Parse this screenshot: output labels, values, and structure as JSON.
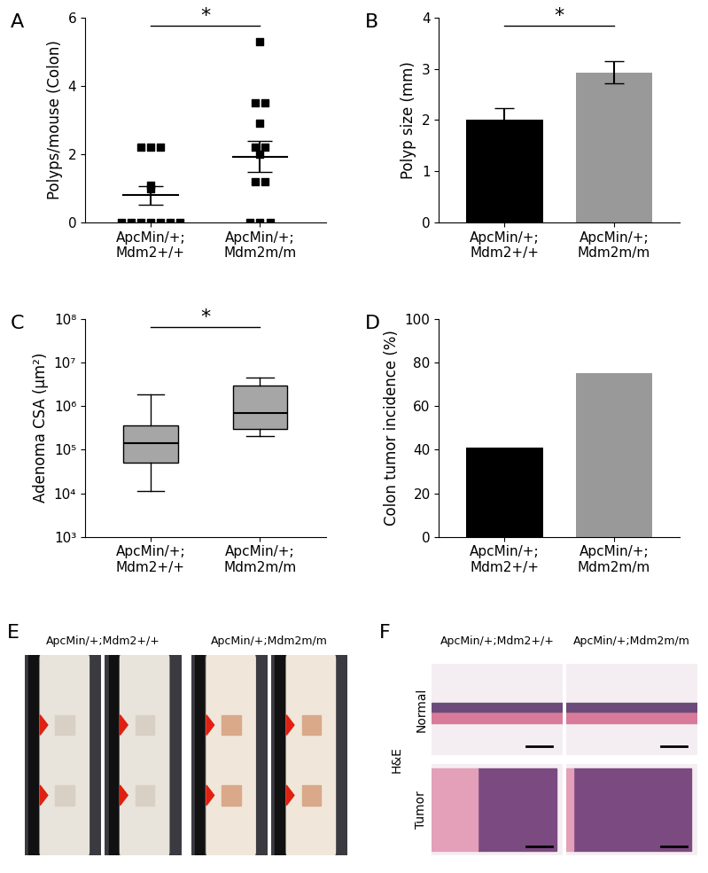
{
  "chart_data": [
    {
      "panel": "A",
      "type": "dot_plot",
      "categories": [
        "ApcMin/+;\nMdm2+/+",
        "ApcMin/+;\nMdm2m/m"
      ],
      "ylabel": "Polyps/mouse (Colon)",
      "values": [
        [
          2.2,
          2.2,
          2.2,
          1.1,
          1.0,
          0,
          0,
          0,
          0,
          0,
          0,
          0
        ],
        [
          5.3,
          3.5,
          3.5,
          2.9,
          2.2,
          2.2,
          2.0,
          1.2,
          1.2,
          0,
          0,
          0
        ]
      ],
      "means": [
        0.8,
        1.93
      ],
      "errors": [
        0.28,
        0.45
      ],
      "ylim": [
        0,
        6
      ],
      "yticks": [
        0,
        2,
        4,
        6
      ],
      "annotations": [
        "*"
      ],
      "marker": "square",
      "color": "#000000"
    },
    {
      "panel": "B",
      "type": "bar",
      "categories": [
        "ApcMin/+;\nMdm2+/+",
        "ApcMin/+;\nMdm2m/m"
      ],
      "ylabel": "Polyp size (mm)",
      "values": [
        2.0,
        2.93
      ],
      "errors": [
        0.23,
        0.22
      ],
      "colors": [
        "#000000",
        "#999999"
      ],
      "ylim": [
        0,
        4
      ],
      "yticks": [
        0,
        1,
        2,
        3,
        4
      ],
      "annotations": [
        "*"
      ]
    },
    {
      "panel": "C",
      "type": "box",
      "categories": [
        "ApcMin/+;\nMdm2+/+",
        "ApcMin/+;\nMdm2m/m"
      ],
      "ylabel": "Adenoma CSA (μm²)",
      "boxes": [
        {
          "whislo": 11000,
          "q1": 50000,
          "med": 140000,
          "q3": 350000,
          "whishi": 1800000
        },
        {
          "whislo": 200000,
          "q1": 300000,
          "med": 700000,
          "q3": 3000000,
          "whishi": 4500000
        }
      ],
      "log": "y",
      "color": "#a6a6a6",
      "ylim": [
        1000,
        100000000
      ],
      "yticks": [
        {
          "value": 1000,
          "label": "10³"
        },
        {
          "value": 10000,
          "label": "10⁴"
        },
        {
          "value": 100000,
          "label": "10⁵"
        },
        {
          "value": 1000000,
          "label": "10⁶"
        },
        {
          "value": 10000000,
          "label": "10⁷"
        },
        {
          "value": 100000000,
          "label": "10⁸"
        }
      ],
      "annotations": [
        "*"
      ]
    },
    {
      "panel": "D",
      "type": "bar",
      "categories": [
        "ApcMin/+;\nMdm2+/+",
        "ApcMin/+;\nMdm2m/m"
      ],
      "ylabel": "Colon tumor incidence (%)",
      "values": [
        41,
        75
      ],
      "colors": [
        "#000000",
        "#999999"
      ],
      "ylim": [
        0,
        100
      ],
      "yticks": [
        0,
        20,
        40,
        60,
        80,
        100
      ]
    }
  ],
  "images": [
    {
      "panel": "E",
      "titles": [
        "ApcMin/+;Mdm2+/+",
        "ApcMin/+;Mdm2m/m"
      ]
    },
    {
      "panel": "F",
      "titles": [
        "ApcMin/+;Mdm2+/+",
        "ApcMin/+;Mdm2m/m"
      ],
      "rows": [
        "Normal",
        "Tumor"
      ],
      "stain": "H&E"
    }
  ]
}
